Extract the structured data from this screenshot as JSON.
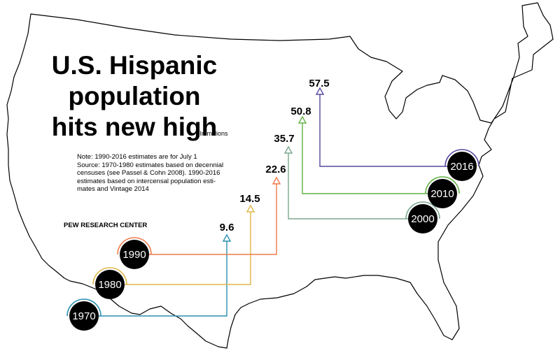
{
  "title_lines": [
    "U.S. Hispanic",
    "population",
    "hits new high"
  ],
  "unit_note": "*In millions",
  "notes": [
    "Note: 1990-2016 estimates are for July 1",
    "Source: 1970-1980 estimates based on decennial",
    "censuses (see Passel & Cohn 2008). 1990-2016",
    "estimates based on intercensal population esti-",
    "mates and Vintage 2014"
  ],
  "source": "PEW RESEARCH CENTER",
  "chart_data": {
    "type": "line",
    "title": "U.S. Hispanic population hits new high",
    "unit": "*In millions",
    "categories": [
      "1970",
      "1980",
      "1990",
      "2000",
      "2010",
      "2016"
    ],
    "values": [
      9.6,
      14.5,
      22.6,
      35.7,
      50.8,
      57.5
    ],
    "value_labels": [
      "9.6",
      "14.5",
      "22.6",
      "35.7",
      "50.8",
      "57.5"
    ],
    "colors": [
      "#2a8fb0",
      "#e0b64a",
      "#ee7a4a",
      "#7aa88e",
      "#62b245",
      "#5548a0"
    ]
  }
}
